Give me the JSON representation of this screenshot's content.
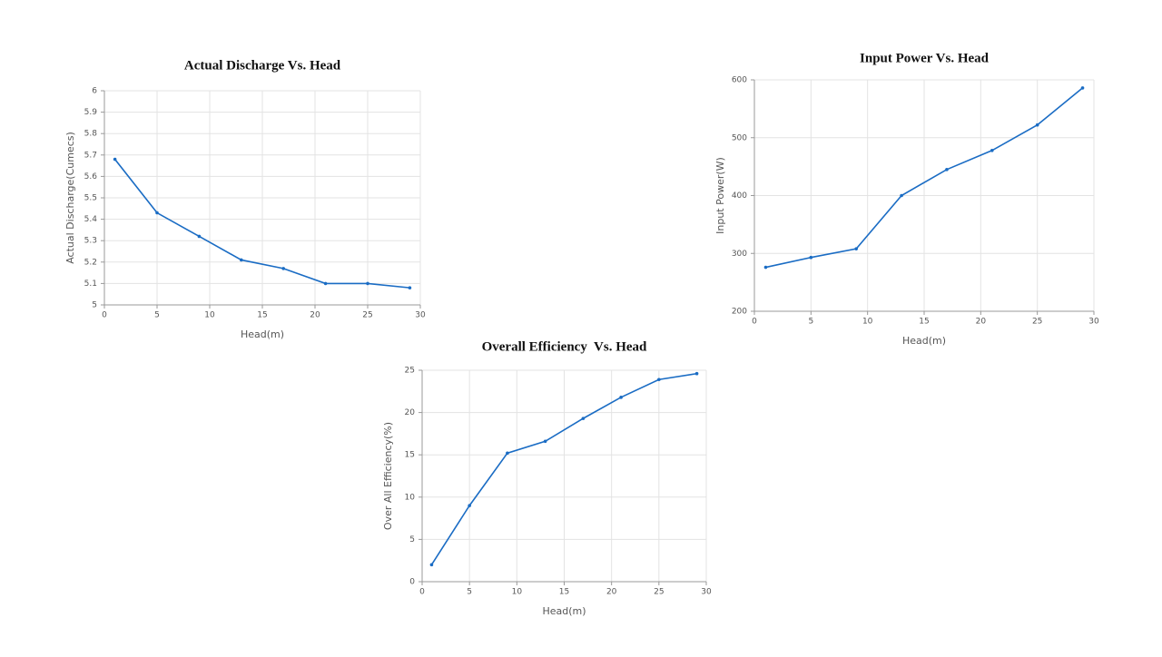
{
  "chart_data": [
    {
      "type": "line",
      "title": "Actual Discharge Vs. Head",
      "x_label": "Head(m)",
      "y_label": "Actual Discharge(Cumecs)",
      "x": [
        1,
        5,
        9,
        13,
        17,
        21,
        25,
        29
      ],
      "values": [
        5.68,
        5.43,
        5.32,
        5.21,
        5.17,
        5.1,
        5.1,
        5.08
      ],
      "color": "#1a6cc4",
      "xlim": [
        0,
        30
      ],
      "xticks": [
        0,
        5,
        10,
        15,
        20,
        25,
        30
      ],
      "ylim": [
        5,
        6
      ],
      "yticks": [
        5,
        5.1,
        5.2,
        5.3,
        5.4,
        5.5,
        5.6,
        5.7,
        5.8,
        5.9,
        6
      ],
      "grid": true
    },
    {
      "type": "line",
      "title": "Input Power Vs. Head",
      "x_label": "Head(m)",
      "y_label": "Input Power(W)",
      "x": [
        1,
        5,
        9,
        13,
        17,
        21,
        25,
        29
      ],
      "values": [
        276,
        293,
        308,
        400,
        445,
        478,
        522,
        586
      ],
      "color": "#1a6cc4",
      "xlim": [
        0,
        30
      ],
      "xticks": [
        0,
        5,
        10,
        15,
        20,
        25,
        30
      ],
      "ylim": [
        200,
        600
      ],
      "yticks": [
        200,
        300,
        400,
        500,
        600
      ],
      "grid": true
    },
    {
      "type": "line",
      "title": "Overall Efficiency  Vs. Head",
      "x_label": "Head(m)",
      "y_label": "Over All Efficiency(%)",
      "x": [
        1,
        5,
        9,
        13,
        17,
        21,
        25,
        29
      ],
      "values": [
        2,
        9,
        15.2,
        16.6,
        19.3,
        21.8,
        23.9,
        24.6
      ],
      "color": "#1a6cc4",
      "xlim": [
        0,
        30
      ],
      "xticks": [
        0,
        5,
        10,
        15,
        20,
        25,
        30
      ],
      "ylim": [
        0,
        25
      ],
      "yticks": [
        0,
        5,
        10,
        15,
        20,
        25
      ],
      "grid": true
    }
  ]
}
